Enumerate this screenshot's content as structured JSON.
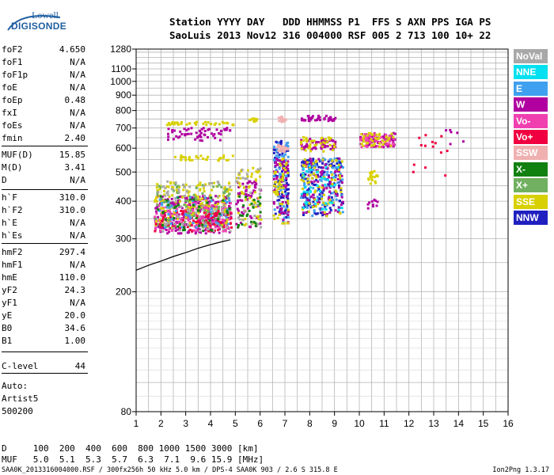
{
  "logo": {
    "line1": "Lowell",
    "line2": "DIGISONDE"
  },
  "header": {
    "line1": "Station YYYY DAY   DDD HHMMSS P1  FFS S AXN PPS IGA PS",
    "line2": "SaoLuis 2013 Nov12 316 004000 RSF 005 2 713 100 10+ 22"
  },
  "params": [
    {
      "k": "foF2",
      "v": "4.650"
    },
    {
      "k": "foF1",
      "v": "N/A"
    },
    {
      "k": "foF1p",
      "v": "N/A"
    },
    {
      "k": "foE",
      "v": "N/A"
    },
    {
      "k": "foEp",
      "v": "0.48"
    },
    {
      "k": "fxI",
      "v": "N/A"
    },
    {
      "k": "foEs",
      "v": "N/A"
    },
    {
      "k": "fmin",
      "v": "2.40"
    },
    {
      "k": "MUF(D)",
      "v": "15.85"
    },
    {
      "k": "M(D)",
      "v": "3.41"
    },
    {
      "k": "D",
      "v": "N/A"
    },
    {
      "k": "h`F",
      "v": "310.0"
    },
    {
      "k": "h`F2",
      "v": "310.0"
    },
    {
      "k": "h`E",
      "v": "N/A"
    },
    {
      "k": "h`Es",
      "v": "N/A"
    },
    {
      "k": "hmF2",
      "v": "297.4"
    },
    {
      "k": "hmF1",
      "v": "N/A"
    },
    {
      "k": "hmE",
      "v": "110.0"
    },
    {
      "k": "yF2",
      "v": "24.3"
    },
    {
      "k": "yF1",
      "v": "N/A"
    },
    {
      "k": "yE",
      "v": "20.0"
    },
    {
      "k": "B0",
      "v": "34.6"
    },
    {
      "k": "B1",
      "v": "1.00"
    },
    {
      "k": "C-level",
      "v": "44"
    }
  ],
  "auto": {
    "line1": "Auto:",
    "line2": "Artist5",
    "line3": "500200"
  },
  "dmuf": {
    "d_line": "D     100  200  400  600  800 1000 1500 3000 [km]",
    "muf_line": "MUF   5.0  5.1  5.3  5.7  6.3  7.1  9.6 15.9 [MHz]"
  },
  "footer": "SAA0K_2013316004000.RSF / 300fx256h 50 kHz 5.0 km / DPS-4 SAA0K 903 / 2.6 S 315.8 E",
  "version": "Ion2Png 1.3.17",
  "legend": [
    {
      "label": "NoVal",
      "color": "#a8a8a8"
    },
    {
      "label": "NNE",
      "color": "#00e0f0"
    },
    {
      "label": "E",
      "color": "#40a0f0"
    },
    {
      "label": "W",
      "color": "#b000a0"
    },
    {
      "label": "Vo-",
      "color": "#f040b0"
    },
    {
      "label": "Vo+",
      "color": "#f00040"
    },
    {
      "label": "SSW",
      "color": "#f0b0b0"
    },
    {
      "label": "X-",
      "color": "#108010"
    },
    {
      "label": "X+",
      "color": "#70b060"
    },
    {
      "label": "SSE",
      "color": "#d8d000"
    },
    {
      "label": "NNW",
      "color": "#2020c0"
    }
  ],
  "chart_data": {
    "type": "scatter",
    "title": "",
    "xlabel": "",
    "ylabel": "",
    "xlim": [
      1,
      16
    ],
    "ylim": [
      80,
      1280
    ],
    "yscale": "log",
    "x_ticks": [
      1,
      2,
      3,
      4,
      5,
      6,
      7,
      8,
      9,
      10,
      11,
      12,
      13,
      14,
      15,
      16
    ],
    "y_ticks": [
      80,
      200,
      300,
      400,
      500,
      600,
      700,
      800,
      900,
      1000,
      1100,
      1280
    ],
    "grid": true,
    "trace_x": [
      1.0,
      1.5,
      2.0,
      2.5,
      3.0,
      3.5,
      4.0,
      4.5,
      4.8
    ],
    "trace_y": [
      236,
      245,
      253,
      262,
      270,
      279,
      287,
      294,
      298
    ],
    "clusters": [
      {
        "color": "#b000a0",
        "x": [
          1.7,
          4.8
        ],
        "y": [
          315,
          420
        ],
        "n": 260
      },
      {
        "color": "#f040b0",
        "x": [
          1.7,
          4.8
        ],
        "y": [
          320,
          400
        ],
        "n": 160
      },
      {
        "color": "#d8d000",
        "x": [
          1.7,
          4.8
        ],
        "y": [
          330,
          470
        ],
        "n": 160
      },
      {
        "color": "#70b060",
        "x": [
          1.7,
          4.8
        ],
        "y": [
          330,
          460
        ],
        "n": 90
      },
      {
        "color": "#f00040",
        "x": [
          1.7,
          4.8
        ],
        "y": [
          320,
          380
        ],
        "n": 70
      },
      {
        "color": "#a8a8a8",
        "x": [
          1.7,
          4.8
        ],
        "y": [
          320,
          470
        ],
        "n": 70
      },
      {
        "color": "#40a0f0",
        "x": [
          1.8,
          4.8
        ],
        "y": [
          330,
          420
        ],
        "n": 40
      },
      {
        "color": "#108010",
        "x": [
          1.8,
          4.8
        ],
        "y": [
          320,
          420
        ],
        "n": 40
      },
      {
        "color": "#b000a0",
        "x": [
          2.2,
          4.8
        ],
        "y": [
          640,
          710
        ],
        "n": 60
      },
      {
        "color": "#d8d000",
        "x": [
          2.2,
          4.9
        ],
        "y": [
          720,
          740
        ],
        "n": 40
      },
      {
        "color": "#d8d000",
        "x": [
          2.5,
          4.9
        ],
        "y": [
          550,
          575
        ],
        "n": 30
      },
      {
        "color": "#b000a0",
        "x": [
          5.0,
          6.0
        ],
        "y": [
          330,
          470
        ],
        "n": 60
      },
      {
        "color": "#d8d000",
        "x": [
          5.0,
          6.0
        ],
        "y": [
          330,
          520
        ],
        "n": 50
      },
      {
        "color": "#108010",
        "x": [
          5.0,
          6.0
        ],
        "y": [
          330,
          420
        ],
        "n": 25
      },
      {
        "color": "#a8a8a8",
        "x": [
          5.0,
          6.0
        ],
        "y": [
          330,
          520
        ],
        "n": 25
      },
      {
        "color": "#d8d000",
        "x": [
          5.5,
          5.9
        ],
        "y": [
          740,
          760
        ],
        "n": 10
      },
      {
        "color": "#2020c0",
        "x": [
          6.5,
          7.1
        ],
        "y": [
          340,
          640
        ],
        "n": 90
      },
      {
        "color": "#40a0f0",
        "x": [
          6.5,
          7.1
        ],
        "y": [
          340,
          640
        ],
        "n": 60
      },
      {
        "color": "#b000a0",
        "x": [
          6.5,
          7.1
        ],
        "y": [
          340,
          560
        ],
        "n": 60
      },
      {
        "color": "#d8d000",
        "x": [
          6.5,
          7.1
        ],
        "y": [
          340,
          560
        ],
        "n": 50
      },
      {
        "color": "#f0b0b0",
        "x": [
          6.6,
          7.1
        ],
        "y": [
          590,
          620
        ],
        "n": 25
      },
      {
        "color": "#f0b0b0",
        "x": [
          6.6,
          7.0
        ],
        "y": [
          740,
          770
        ],
        "n": 20
      },
      {
        "color": "#2020c0",
        "x": [
          7.6,
          9.3
        ],
        "y": [
          360,
          560
        ],
        "n": 160
      },
      {
        "color": "#40a0f0",
        "x": [
          7.6,
          9.3
        ],
        "y": [
          360,
          560
        ],
        "n": 90
      },
      {
        "color": "#b000a0",
        "x": [
          7.6,
          9.3
        ],
        "y": [
          360,
          560
        ],
        "n": 80
      },
      {
        "color": "#d8d000",
        "x": [
          7.6,
          9.3
        ],
        "y": [
          360,
          560
        ],
        "n": 70
      },
      {
        "color": "#00e0f0",
        "x": [
          7.6,
          9.3
        ],
        "y": [
          360,
          540
        ],
        "n": 40
      },
      {
        "color": "#b000a0",
        "x": [
          7.6,
          9.0
        ],
        "y": [
          600,
          650
        ],
        "n": 60
      },
      {
        "color": "#d8d000",
        "x": [
          7.6,
          9.0
        ],
        "y": [
          590,
          660
        ],
        "n": 40
      },
      {
        "color": "#b000a0",
        "x": [
          7.6,
          9.0
        ],
        "y": [
          745,
          775
        ],
        "n": 40
      },
      {
        "color": "#b000a0",
        "x": [
          10.0,
          11.4
        ],
        "y": [
          610,
          680
        ],
        "n": 70
      },
      {
        "color": "#f040b0",
        "x": [
          10.0,
          11.4
        ],
        "y": [
          610,
          680
        ],
        "n": 50
      },
      {
        "color": "#d8d000",
        "x": [
          10.0,
          11.4
        ],
        "y": [
          610,
          680
        ],
        "n": 40
      },
      {
        "color": "#d8d000",
        "x": [
          10.3,
          10.7
        ],
        "y": [
          460,
          510
        ],
        "n": 20
      },
      {
        "color": "#b000a0",
        "x": [
          10.3,
          10.7
        ],
        "y": [
          380,
          410
        ],
        "n": 10
      },
      {
        "color": "#f00040",
        "x": [
          12.0,
          13.5
        ],
        "y": [
          490,
          700
        ],
        "n": 14
      },
      {
        "color": "#b000a0",
        "x": [
          13.0,
          14.2
        ],
        "y": [
          600,
          700
        ],
        "n": 6
      }
    ]
  }
}
